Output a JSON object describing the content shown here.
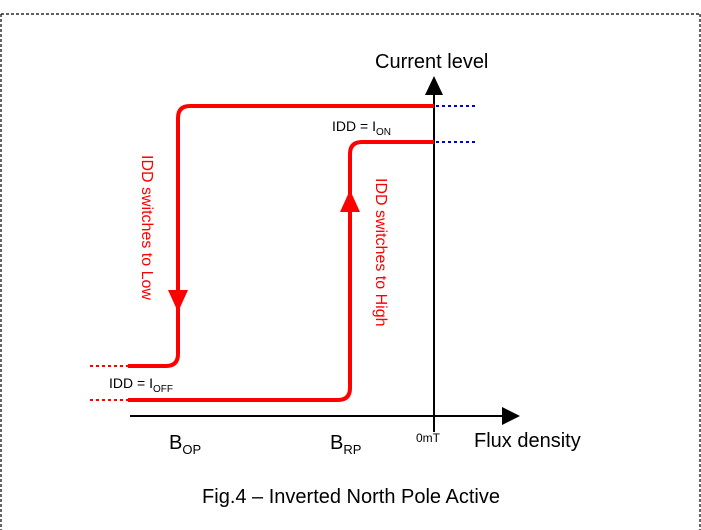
{
  "diagram": {
    "y_axis_label": "Current level",
    "x_axis_label": "Flux density",
    "zero_label": "0mT",
    "i_on_label": {
      "prefix": "IDD = I",
      "sub": "ON"
    },
    "i_off_label": {
      "prefix": "IDD = I",
      "sub": "OFF"
    },
    "b_op_label": {
      "main": "B",
      "sub": "OP"
    },
    "b_rp_label": {
      "main": "B",
      "sub": "RP"
    },
    "switch_low_text": "IDD switches to Low",
    "switch_high_text": "IDD switches to High",
    "caption": "Fig.4 – Inverted North Pole Active"
  },
  "colors": {
    "curve": "#ff0000",
    "dotted_on_off": "#0000cc",
    "axis": "#000000",
    "frame_border": "#000000"
  }
}
